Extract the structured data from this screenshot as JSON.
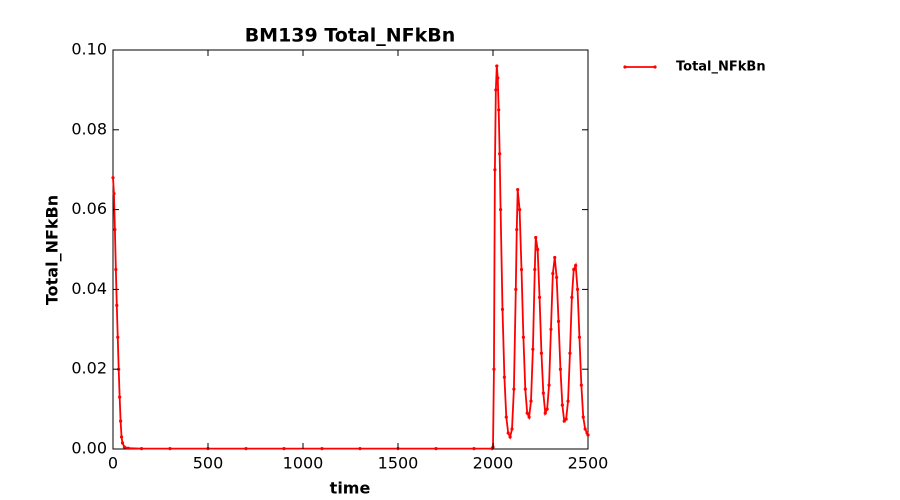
{
  "chart_data": {
    "type": "line",
    "title": "BM139 Total_NFkBn",
    "x_label": "time",
    "y_label": "Total_NFkBn",
    "x": [
      0,
      5,
      10,
      15,
      20,
      25,
      30,
      35,
      40,
      45,
      50,
      60,
      80,
      150,
      300,
      500,
      700,
      900,
      1100,
      1300,
      1500,
      1700,
      1900,
      1995,
      2000,
      2005,
      2010,
      2015,
      2020,
      2025,
      2030,
      2035,
      2040,
      2050,
      2060,
      2070,
      2080,
      2090,
      2100,
      2110,
      2120,
      2125,
      2130,
      2140,
      2150,
      2160,
      2170,
      2180,
      2190,
      2200,
      2210,
      2220,
      2225,
      2235,
      2245,
      2255,
      2265,
      2275,
      2285,
      2295,
      2305,
      2315,
      2325,
      2335,
      2345,
      2355,
      2365,
      2375,
      2385,
      2395,
      2405,
      2415,
      2425,
      2435,
      2445,
      2455,
      2465,
      2475,
      2485,
      2495,
      2500
    ],
    "series": [
      {
        "name": "Total_NFkBn",
        "color": "#ff0000",
        "values": [
          0.068,
          0.064,
          0.055,
          0.045,
          0.036,
          0.028,
          0.02,
          0.013,
          0.007,
          0.003,
          0.0015,
          0.0005,
          0.0002,
          0.0001,
          0.0001,
          0.0001,
          0.0001,
          0.0001,
          0.0001,
          0.0001,
          0.0001,
          0.0001,
          0.0001,
          0.0001,
          0.0005,
          0.02,
          0.07,
          0.09,
          0.096,
          0.093,
          0.085,
          0.074,
          0.06,
          0.035,
          0.018,
          0.008,
          0.004,
          0.003,
          0.005,
          0.015,
          0.04,
          0.055,
          0.065,
          0.06,
          0.045,
          0.028,
          0.015,
          0.009,
          0.008,
          0.012,
          0.025,
          0.045,
          0.053,
          0.05,
          0.038,
          0.024,
          0.014,
          0.009,
          0.01,
          0.016,
          0.03,
          0.044,
          0.048,
          0.043,
          0.032,
          0.02,
          0.011,
          0.007,
          0.0075,
          0.012,
          0.024,
          0.038,
          0.045,
          0.046,
          0.04,
          0.028,
          0.016,
          0.008,
          0.005,
          0.004,
          0.0035
        ]
      }
    ],
    "xlim": [
      0,
      2500
    ],
    "xticks": [
      0,
      500,
      1000,
      1500,
      2000,
      2500
    ],
    "ylim": [
      0,
      0.1
    ],
    "yticks": [
      {
        "value": 0,
        "label": "0.00"
      },
      {
        "value": 0.02,
        "label": "0.02"
      },
      {
        "value": 0.04,
        "label": "0.04"
      },
      {
        "value": 0.06,
        "label": "0.06"
      },
      {
        "value": 0.08,
        "label": "0.08"
      },
      {
        "value": 0.1,
        "label": "0.10"
      }
    ],
    "legend": "upper right outside"
  }
}
